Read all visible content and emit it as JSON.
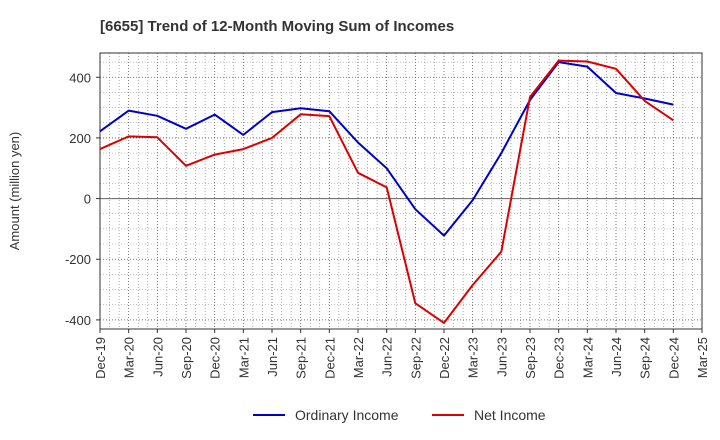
{
  "chart_data": {
    "type": "line",
    "title": "[6655]  Trend of 12-Month Moving Sum of Incomes",
    "ylabel": "Amount (million yen)",
    "xlabel": "",
    "categories": [
      "Dec-19",
      "Mar-20",
      "Jun-20",
      "Sep-20",
      "Dec-20",
      "Mar-21",
      "Jun-21",
      "Sep-21",
      "Dec-21",
      "Mar-22",
      "Jun-22",
      "Sep-22",
      "Dec-22",
      "Mar-23",
      "Jun-23",
      "Sep-23",
      "Dec-23",
      "Mar-24",
      "Jun-24",
      "Sep-24",
      "Dec-24",
      "Mar-25"
    ],
    "ylim": [
      -430,
      480
    ],
    "yticks": [
      400,
      200,
      0,
      -200,
      -400
    ],
    "ytick_labels": [
      "400",
      "200",
      "0",
      "-200",
      "-400"
    ],
    "grid": true,
    "legend_position": "bottom",
    "series": [
      {
        "name": "Ordinary Income",
        "color": "#0000cc",
        "values": [
          222,
          290,
          273,
          230,
          277,
          210,
          285,
          298,
          288,
          185,
          100,
          -35,
          -122,
          -5,
          150,
          325,
          450,
          435,
          348,
          330,
          310,
          null
        ]
      },
      {
        "name": "Net Income",
        "color": "#dd0000",
        "values": [
          163,
          205,
          202,
          108,
          145,
          163,
          200,
          278,
          272,
          85,
          37,
          -345,
          -410,
          -285,
          -175,
          335,
          455,
          452,
          428,
          322,
          258,
          null
        ]
      }
    ]
  }
}
